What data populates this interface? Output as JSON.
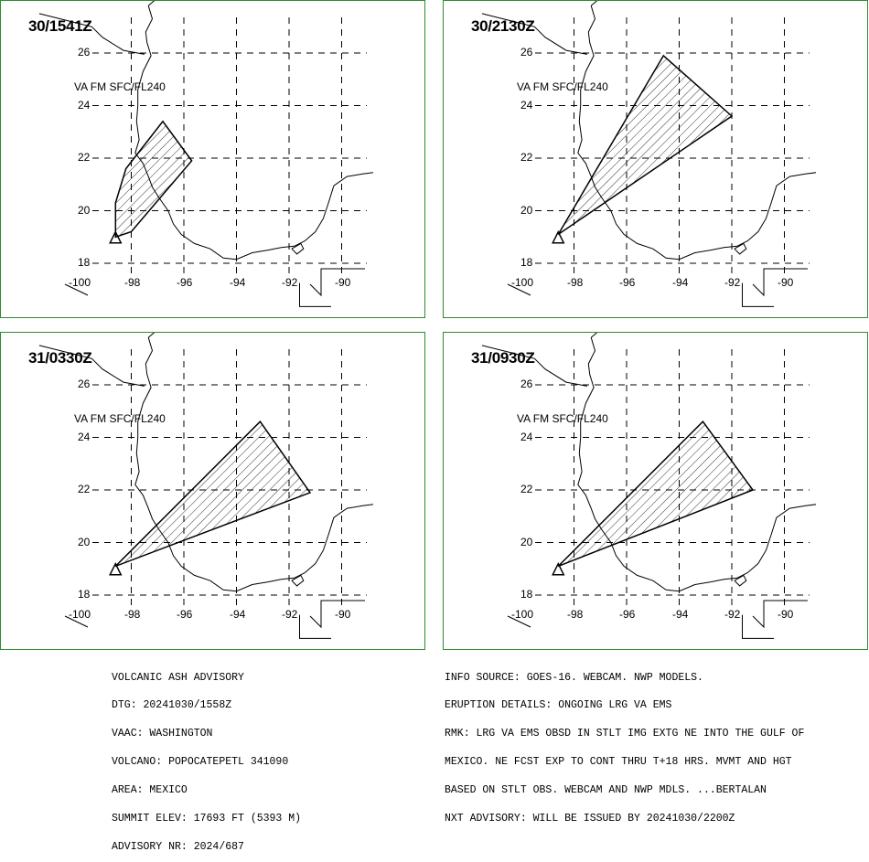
{
  "panels": [
    {
      "time_label": "30/1541Z",
      "layer_label": "VA FM SFC/FL240",
      "ash_polygon": [
        [
          -98.6,
          19.0
        ],
        [
          -98.0,
          19.2
        ],
        [
          -95.7,
          21.9
        ],
        [
          -96.8,
          23.4
        ],
        [
          -98.2,
          21.6
        ],
        [
          -98.6,
          20.3
        ]
      ]
    },
    {
      "time_label": "30/2130Z",
      "layer_label": "VA FM SFC/FL240",
      "ash_polygon": [
        [
          -98.6,
          19.1
        ],
        [
          -94.6,
          25.9
        ],
        [
          -92.0,
          23.6
        ]
      ]
    },
    {
      "time_label": "31/0330Z",
      "layer_label": "VA FM SFC/FL240",
      "ash_polygon": [
        [
          -98.6,
          19.1
        ],
        [
          -93.1,
          24.6
        ],
        [
          -91.2,
          21.9
        ]
      ]
    },
    {
      "time_label": "31/0930Z",
      "layer_label": "VA FM SFC/FL240",
      "ash_polygon": [
        [
          -98.6,
          19.1
        ],
        [
          -93.1,
          24.6
        ],
        [
          -91.2,
          22.0
        ]
      ]
    }
  ],
  "map": {
    "lat_ticks": [
      "26",
      "24",
      "22",
      "20",
      "18"
    ],
    "lon_ticks": [
      "-100",
      "-98",
      "-96",
      "-94",
      "-92",
      "-90"
    ],
    "volcano": [
      -98.6,
      18.95
    ],
    "grid": true,
    "frame_color": "#2e8b2e"
  },
  "advisory_left": [
    "VOLCANIC ASH ADVISORY",
    "DTG: 20241030/1558Z",
    "VAAC: WASHINGTON",
    "VOLCANO: POPOCATEPETL 341090",
    "AREA: MEXICO",
    "SUMMIT ELEV: 17693 FT (5393 M)",
    "ADVISORY NR: 2024/687"
  ],
  "advisory_right": [
    "INFO SOURCE: GOES-16. WEBCAM. NWP MODELS.",
    "ERUPTION DETAILS: ONGOING LRG VA EMS",
    "RMK: LRG VA EMS OBSD IN STLT IMG EXTG NE INTO THE GULF OF",
    "MEXICO. NE FCST EXP TO CONT THRU T+18 HRS. MVMT AND HGT",
    "BASED ON STLT OBS. WEBCAM AND NWP MDLS. ...BERTALAN",
    "NXT ADVISORY: WILL BE ISSUED BY 20241030/2200Z"
  ]
}
